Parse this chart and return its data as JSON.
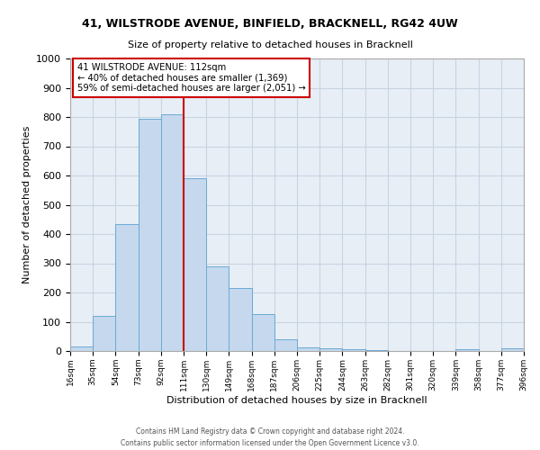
{
  "title1": "41, WILSTRODE AVENUE, BINFIELD, BRACKNELL, RG42 4UW",
  "title2": "Size of property relative to detached houses in Bracknell",
  "xlabel": "Distribution of detached houses by size in Bracknell",
  "ylabel": "Number of detached properties",
  "bar_color": "#c5d8ed",
  "bar_edge_color": "#6aaad4",
  "bin_edges": [
    16,
    35,
    54,
    73,
    92,
    111,
    130,
    149,
    168,
    187,
    206,
    225,
    244,
    263,
    282,
    301,
    320,
    339,
    358,
    377,
    396
  ],
  "bar_heights": [
    15,
    120,
    435,
    795,
    810,
    590,
    290,
    215,
    125,
    40,
    12,
    8,
    5,
    3,
    0,
    0,
    0,
    5,
    0,
    8
  ],
  "tick_labels": [
    "16sqm",
    "35sqm",
    "54sqm",
    "73sqm",
    "92sqm",
    "111sqm",
    "130sqm",
    "149sqm",
    "168sqm",
    "187sqm",
    "206sqm",
    "225sqm",
    "244sqm",
    "263sqm",
    "282sqm",
    "301sqm",
    "320sqm",
    "339sqm",
    "358sqm",
    "377sqm",
    "396sqm"
  ],
  "vline_x": 111,
  "vline_color": "#cc0000",
  "annotation_title": "41 WILSTRODE AVENUE: 112sqm",
  "annotation_line1": "← 40% of detached houses are smaller (1,369)",
  "annotation_line2": "59% of semi-detached houses are larger (2,051) →",
  "annotation_box_color": "#cc0000",
  "ylim": [
    0,
    1000
  ],
  "yticks": [
    0,
    100,
    200,
    300,
    400,
    500,
    600,
    700,
    800,
    900,
    1000
  ],
  "grid_color": "#c8d4e3",
  "background_color": "#e8eef6",
  "footer1": "Contains HM Land Registry data © Crown copyright and database right 2024.",
  "footer2": "Contains public sector information licensed under the Open Government Licence v3.0."
}
